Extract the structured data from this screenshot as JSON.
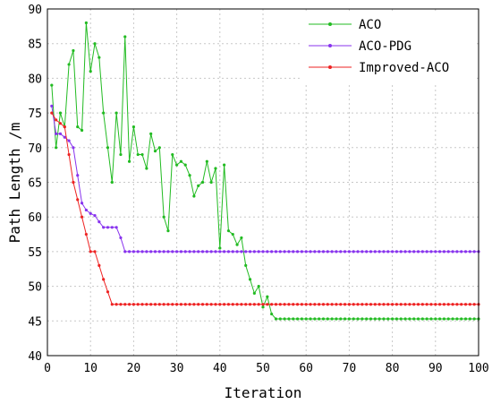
{
  "chart_data": {
    "type": "line",
    "title": "",
    "xlabel": "Iteration",
    "ylabel": "Path Length /m",
    "xlim": [
      0,
      100
    ],
    "ylim": [
      40,
      90
    ],
    "xticks": [
      0,
      10,
      20,
      30,
      40,
      50,
      60,
      70,
      80,
      90,
      100
    ],
    "yticks": [
      40,
      45,
      50,
      55,
      60,
      65,
      70,
      75,
      80,
      85,
      90
    ],
    "grid": true,
    "legend_position": "top-right",
    "series": [
      {
        "name": "ACO",
        "color": "#22bb22",
        "marker": "dot",
        "points": [
          [
            1,
            79
          ],
          [
            2,
            70
          ],
          [
            3,
            75
          ],
          [
            4,
            73
          ],
          [
            5,
            82
          ],
          [
            6,
            84
          ],
          [
            7,
            73
          ],
          [
            8,
            72.5
          ],
          [
            9,
            88
          ],
          [
            10,
            81
          ],
          [
            11,
            85
          ],
          [
            12,
            83
          ],
          [
            13,
            75
          ],
          [
            14,
            70
          ],
          [
            15,
            65
          ],
          [
            16,
            75
          ],
          [
            17,
            69
          ],
          [
            18,
            86
          ],
          [
            19,
            68
          ],
          [
            20,
            73
          ],
          [
            21,
            69
          ],
          [
            22,
            69
          ],
          [
            23,
            67
          ],
          [
            24,
            72
          ],
          [
            25,
            69.5
          ],
          [
            26,
            70
          ],
          [
            27,
            60
          ],
          [
            28,
            58
          ],
          [
            29,
            69
          ],
          [
            30,
            67.5
          ],
          [
            31,
            68
          ],
          [
            32,
            67.5
          ],
          [
            33,
            66
          ],
          [
            34,
            63
          ],
          [
            35,
            64.5
          ],
          [
            36,
            65
          ],
          [
            37,
            68
          ],
          [
            38,
            65
          ],
          [
            39,
            67
          ],
          [
            40,
            55.5
          ],
          [
            41,
            67.5
          ],
          [
            42,
            58
          ],
          [
            43,
            57.5
          ],
          [
            44,
            56
          ],
          [
            45,
            57
          ],
          [
            46,
            53
          ],
          [
            47,
            51
          ],
          [
            48,
            49
          ],
          [
            49,
            50
          ],
          [
            50,
            47
          ],
          [
            51,
            48.5
          ],
          [
            52,
            46
          ],
          [
            53,
            45.3
          ],
          [
            54,
            45.3
          ],
          [
            55,
            45.3
          ],
          [
            56,
            45.3
          ],
          [
            57,
            45.3
          ],
          [
            58,
            45.3
          ],
          [
            59,
            45.3
          ],
          [
            60,
            45.3
          ],
          [
            61,
            45.3
          ],
          [
            62,
            45.3
          ],
          [
            63,
            45.3
          ],
          [
            64,
            45.3
          ],
          [
            65,
            45.3
          ],
          [
            66,
            45.3
          ],
          [
            67,
            45.3
          ],
          [
            68,
            45.3
          ],
          [
            69,
            45.3
          ],
          [
            70,
            45.3
          ],
          [
            71,
            45.3
          ],
          [
            72,
            45.3
          ],
          [
            73,
            45.3
          ],
          [
            74,
            45.3
          ],
          [
            75,
            45.3
          ],
          [
            76,
            45.3
          ],
          [
            77,
            45.3
          ],
          [
            78,
            45.3
          ],
          [
            79,
            45.3
          ],
          [
            80,
            45.3
          ],
          [
            81,
            45.3
          ],
          [
            82,
            45.3
          ],
          [
            83,
            45.3
          ],
          [
            84,
            45.3
          ],
          [
            85,
            45.3
          ],
          [
            86,
            45.3
          ],
          [
            87,
            45.3
          ],
          [
            88,
            45.3
          ],
          [
            89,
            45.3
          ],
          [
            90,
            45.3
          ],
          [
            91,
            45.3
          ],
          [
            92,
            45.3
          ],
          [
            93,
            45.3
          ],
          [
            94,
            45.3
          ],
          [
            95,
            45.3
          ],
          [
            96,
            45.3
          ],
          [
            97,
            45.3
          ],
          [
            98,
            45.3
          ],
          [
            99,
            45.3
          ],
          [
            100,
            45.3
          ]
        ]
      },
      {
        "name": "ACO-PDG",
        "color": "#8833ee",
        "marker": "dot",
        "points": [
          [
            1,
            76
          ],
          [
            2,
            72
          ],
          [
            3,
            72
          ],
          [
            4,
            71.5
          ],
          [
            5,
            71
          ],
          [
            6,
            70
          ],
          [
            7,
            66
          ],
          [
            8,
            62
          ],
          [
            9,
            61
          ],
          [
            10,
            60.5
          ],
          [
            11,
            60.2
          ],
          [
            12,
            59.3
          ],
          [
            13,
            58.5
          ],
          [
            14,
            58.5
          ],
          [
            15,
            58.5
          ],
          [
            16,
            58.5
          ],
          [
            17,
            57
          ],
          [
            18,
            55
          ],
          [
            19,
            55
          ],
          [
            20,
            55
          ],
          [
            21,
            55
          ],
          [
            22,
            55
          ],
          [
            23,
            55
          ],
          [
            24,
            55
          ],
          [
            25,
            55
          ],
          [
            26,
            55
          ],
          [
            27,
            55
          ],
          [
            28,
            55
          ],
          [
            29,
            55
          ],
          [
            30,
            55
          ],
          [
            31,
            55
          ],
          [
            32,
            55
          ],
          [
            33,
            55
          ],
          [
            34,
            55
          ],
          [
            35,
            55
          ],
          [
            36,
            55
          ],
          [
            37,
            55
          ],
          [
            38,
            55
          ],
          [
            39,
            55
          ],
          [
            40,
            55
          ],
          [
            41,
            55
          ],
          [
            42,
            55
          ],
          [
            43,
            55
          ],
          [
            44,
            55
          ],
          [
            45,
            55
          ],
          [
            46,
            55
          ],
          [
            47,
            55
          ],
          [
            48,
            55
          ],
          [
            49,
            55
          ],
          [
            50,
            55
          ],
          [
            51,
            55
          ],
          [
            52,
            55
          ],
          [
            53,
            55
          ],
          [
            54,
            55
          ],
          [
            55,
            55
          ],
          [
            56,
            55
          ],
          [
            57,
            55
          ],
          [
            58,
            55
          ],
          [
            59,
            55
          ],
          [
            60,
            55
          ],
          [
            61,
            55
          ],
          [
            62,
            55
          ],
          [
            63,
            55
          ],
          [
            64,
            55
          ],
          [
            65,
            55
          ],
          [
            66,
            55
          ],
          [
            67,
            55
          ],
          [
            68,
            55
          ],
          [
            69,
            55
          ],
          [
            70,
            55
          ],
          [
            71,
            55
          ],
          [
            72,
            55
          ],
          [
            73,
            55
          ],
          [
            74,
            55
          ],
          [
            75,
            55
          ],
          [
            76,
            55
          ],
          [
            77,
            55
          ],
          [
            78,
            55
          ],
          [
            79,
            55
          ],
          [
            80,
            55
          ],
          [
            81,
            55
          ],
          [
            82,
            55
          ],
          [
            83,
            55
          ],
          [
            84,
            55
          ],
          [
            85,
            55
          ],
          [
            86,
            55
          ],
          [
            87,
            55
          ],
          [
            88,
            55
          ],
          [
            89,
            55
          ],
          [
            90,
            55
          ],
          [
            91,
            55
          ],
          [
            92,
            55
          ],
          [
            93,
            55
          ],
          [
            94,
            55
          ],
          [
            95,
            55
          ],
          [
            96,
            55
          ],
          [
            97,
            55
          ],
          [
            98,
            55
          ],
          [
            99,
            55
          ],
          [
            100,
            55
          ]
        ]
      },
      {
        "name": "Improved-ACO",
        "color": "#ee2222",
        "marker": "dot",
        "points": [
          [
            1,
            75
          ],
          [
            2,
            74
          ],
          [
            3,
            73.5
          ],
          [
            4,
            73
          ],
          [
            5,
            69
          ],
          [
            6,
            65
          ],
          [
            7,
            62.5
          ],
          [
            8,
            60
          ],
          [
            9,
            57.5
          ],
          [
            10,
            55
          ],
          [
            11,
            55
          ],
          [
            12,
            53
          ],
          [
            13,
            51
          ],
          [
            14,
            49.2
          ],
          [
            15,
            47.4
          ],
          [
            16,
            47.4
          ],
          [
            17,
            47.4
          ],
          [
            18,
            47.4
          ],
          [
            19,
            47.4
          ],
          [
            20,
            47.4
          ],
          [
            21,
            47.4
          ],
          [
            22,
            47.4
          ],
          [
            23,
            47.4
          ],
          [
            24,
            47.4
          ],
          [
            25,
            47.4
          ],
          [
            26,
            47.4
          ],
          [
            27,
            47.4
          ],
          [
            28,
            47.4
          ],
          [
            29,
            47.4
          ],
          [
            30,
            47.4
          ],
          [
            31,
            47.4
          ],
          [
            32,
            47.4
          ],
          [
            33,
            47.4
          ],
          [
            34,
            47.4
          ],
          [
            35,
            47.4
          ],
          [
            36,
            47.4
          ],
          [
            37,
            47.4
          ],
          [
            38,
            47.4
          ],
          [
            39,
            47.4
          ],
          [
            40,
            47.4
          ],
          [
            41,
            47.4
          ],
          [
            42,
            47.4
          ],
          [
            43,
            47.4
          ],
          [
            44,
            47.4
          ],
          [
            45,
            47.4
          ],
          [
            46,
            47.4
          ],
          [
            47,
            47.4
          ],
          [
            48,
            47.4
          ],
          [
            49,
            47.4
          ],
          [
            50,
            47.4
          ],
          [
            51,
            47.4
          ],
          [
            52,
            47.4
          ],
          [
            53,
            47.4
          ],
          [
            54,
            47.4
          ],
          [
            55,
            47.4
          ],
          [
            56,
            47.4
          ],
          [
            57,
            47.4
          ],
          [
            58,
            47.4
          ],
          [
            59,
            47.4
          ],
          [
            60,
            47.4
          ],
          [
            61,
            47.4
          ],
          [
            62,
            47.4
          ],
          [
            63,
            47.4
          ],
          [
            64,
            47.4
          ],
          [
            65,
            47.4
          ],
          [
            66,
            47.4
          ],
          [
            67,
            47.4
          ],
          [
            68,
            47.4
          ],
          [
            69,
            47.4
          ],
          [
            70,
            47.4
          ],
          [
            71,
            47.4
          ],
          [
            72,
            47.4
          ],
          [
            73,
            47.4
          ],
          [
            74,
            47.4
          ],
          [
            75,
            47.4
          ],
          [
            76,
            47.4
          ],
          [
            77,
            47.4
          ],
          [
            78,
            47.4
          ],
          [
            79,
            47.4
          ],
          [
            80,
            47.4
          ],
          [
            81,
            47.4
          ],
          [
            82,
            47.4
          ],
          [
            83,
            47.4
          ],
          [
            84,
            47.4
          ],
          [
            85,
            47.4
          ],
          [
            86,
            47.4
          ],
          [
            87,
            47.4
          ],
          [
            88,
            47.4
          ],
          [
            89,
            47.4
          ],
          [
            90,
            47.4
          ],
          [
            91,
            47.4
          ],
          [
            92,
            47.4
          ],
          [
            93,
            47.4
          ],
          [
            94,
            47.4
          ],
          [
            95,
            47.4
          ],
          [
            96,
            47.4
          ],
          [
            97,
            47.4
          ],
          [
            98,
            47.4
          ],
          [
            99,
            47.4
          ],
          [
            100,
            47.4
          ]
        ]
      }
    ]
  }
}
